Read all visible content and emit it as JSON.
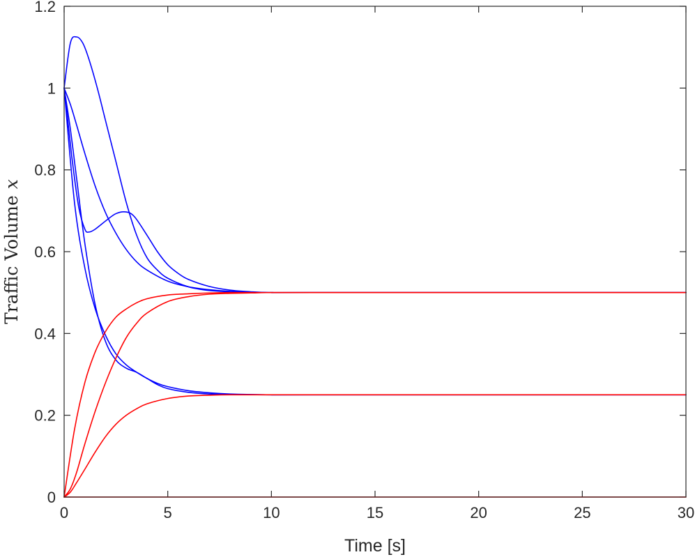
{
  "chart_data": {
    "type": "line",
    "title": "",
    "xlabel": "Time [s]",
    "ylabel": "Traffic Volume",
    "ylabel_var": "x",
    "xlim": [
      0,
      30
    ],
    "ylim": [
      0,
      1.2
    ],
    "xticks": [
      0,
      5,
      10,
      15,
      20,
      25,
      30
    ],
    "yticks": [
      0,
      0.2,
      0.4,
      0.6,
      0.8,
      1,
      1.2
    ],
    "xtick_labels": [
      "0",
      "5",
      "10",
      "15",
      "20",
      "25",
      "30"
    ],
    "ytick_labels": [
      "0",
      "0.2",
      "0.4",
      "0.6",
      "0.8",
      "1",
      "1.2"
    ],
    "grid": false,
    "box": true,
    "colors": {
      "blue": "#0000ff",
      "red": "#ff0000",
      "axis": "#262626"
    },
    "series": [
      {
        "color": "#0000ff",
        "x": [
          0,
          0.3,
          0.6,
          0.9,
          1.2,
          1.6,
          2,
          2.5,
          3,
          3.5,
          4,
          4.5,
          5,
          6,
          7,
          8,
          9,
          10,
          12,
          15,
          30
        ],
        "y": [
          1.0,
          1.11,
          1.125,
          1.11,
          1.07,
          1.0,
          0.92,
          0.82,
          0.72,
          0.64,
          0.585,
          0.555,
          0.535,
          0.514,
          0.505,
          0.502,
          0.5,
          0.5,
          0.5,
          0.5,
          0.5
        ]
      },
      {
        "color": "#0000ff",
        "x": [
          0,
          0.2,
          0.4,
          0.7,
          1.0,
          1.2,
          1.5,
          2,
          2.5,
          3,
          3.4,
          4,
          4.5,
          5,
          5.5,
          6,
          7,
          8,
          9,
          10,
          12,
          30
        ],
        "y": [
          1.0,
          0.91,
          0.82,
          0.71,
          0.655,
          0.648,
          0.655,
          0.675,
          0.693,
          0.697,
          0.685,
          0.64,
          0.6,
          0.568,
          0.547,
          0.532,
          0.515,
          0.506,
          0.502,
          0.5,
          0.5,
          0.5
        ]
      },
      {
        "color": "#0000ff",
        "x": [
          0,
          0.3,
          0.6,
          1.0,
          1.5,
          2,
          2.5,
          3,
          3.5,
          4,
          5,
          6,
          7,
          8,
          10,
          12,
          30
        ],
        "y": [
          1.0,
          0.96,
          0.91,
          0.84,
          0.76,
          0.695,
          0.645,
          0.605,
          0.575,
          0.555,
          0.528,
          0.514,
          0.507,
          0.503,
          0.5,
          0.5,
          0.5
        ]
      },
      {
        "color": "#0000ff",
        "x": [
          0,
          0.5,
          1.0,
          1.5,
          2,
          2.5,
          3,
          3.5,
          4,
          4.5,
          5,
          6,
          7,
          8,
          10,
          12,
          30
        ],
        "y": [
          1.0,
          0.72,
          0.56,
          0.46,
          0.395,
          0.35,
          0.323,
          0.305,
          0.29,
          0.278,
          0.27,
          0.26,
          0.255,
          0.252,
          0.25,
          0.25,
          0.25
        ]
      },
      {
        "color": "#0000ff",
        "x": [
          0,
          0.3,
          0.6,
          1.0,
          1.5,
          2,
          2.5,
          3,
          3.5,
          4,
          4.5,
          5,
          6,
          7,
          8,
          10,
          12,
          30
        ],
        "y": [
          1.0,
          0.9,
          0.78,
          0.62,
          0.47,
          0.38,
          0.335,
          0.315,
          0.305,
          0.29,
          0.275,
          0.265,
          0.256,
          0.252,
          0.251,
          0.25,
          0.25,
          0.25
        ]
      },
      {
        "color": "#ff0000",
        "x": [
          0,
          0.5,
          1.0,
          1.5,
          2,
          2.5,
          3,
          3.5,
          4,
          5,
          6,
          7,
          8,
          9,
          10,
          12,
          30
        ],
        "y": [
          0,
          0.165,
          0.28,
          0.355,
          0.405,
          0.44,
          0.46,
          0.475,
          0.485,
          0.494,
          0.497,
          0.499,
          0.5,
          0.5,
          0.5,
          0.5,
          0.5
        ]
      },
      {
        "color": "#ff0000",
        "x": [
          0,
          0.3,
          0.6,
          1.0,
          1.5,
          2,
          2.5,
          3,
          3.5,
          4,
          5,
          6,
          7,
          8,
          9,
          10,
          12,
          30
        ],
        "y": [
          0,
          0.02,
          0.06,
          0.13,
          0.21,
          0.28,
          0.34,
          0.39,
          0.425,
          0.45,
          0.478,
          0.49,
          0.496,
          0.498,
          0.499,
          0.5,
          0.5,
          0.5
        ]
      },
      {
        "color": "#ff0000",
        "x": [
          0,
          0.3,
          0.6,
          1.0,
          1.5,
          2,
          2.5,
          3,
          3.5,
          4,
          5,
          6,
          7,
          8,
          10,
          12,
          30
        ],
        "y": [
          0,
          0.012,
          0.035,
          0.068,
          0.11,
          0.148,
          0.178,
          0.2,
          0.216,
          0.228,
          0.241,
          0.247,
          0.249,
          0.25,
          0.25,
          0.25,
          0.25
        ]
      },
      {
        "color": "#ff0000",
        "x": [
          0,
          30
        ],
        "y": [
          0,
          0
        ]
      }
    ]
  }
}
